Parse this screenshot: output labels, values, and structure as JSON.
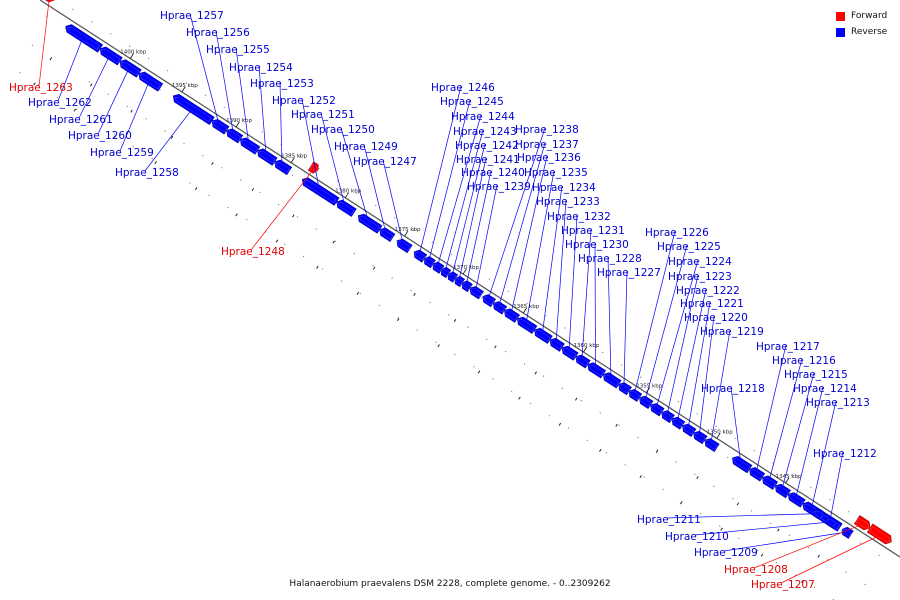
{
  "legend": {
    "forward_label": "Forward",
    "reverse_label": "Reverse",
    "forward_color": "#ff0000",
    "reverse_color": "#0000ff"
  },
  "footer": {
    "title": "Halanaerobium praevalens DSM 2228, complete genome. - 0..2309262"
  },
  "ticks": [
    "1400 kbp",
    "1395 kbp",
    "1390 kbp",
    "1385 kbp",
    "1380 kbp",
    "1375 kbp",
    "1370 kbp",
    "1365 kbp",
    "1360 kbp",
    "1355 kbp",
    "1350 kbp",
    "1345 kbp"
  ],
  "genes": [
    {
      "name": "Hprae_1263",
      "strand": "forward"
    },
    {
      "name": "Hprae_1262",
      "strand": "reverse"
    },
    {
      "name": "Hprae_1261",
      "strand": "reverse"
    },
    {
      "name": "Hprae_1260",
      "strand": "reverse"
    },
    {
      "name": "Hprae_1259",
      "strand": "reverse"
    },
    {
      "name": "Hprae_1258",
      "strand": "reverse"
    },
    {
      "name": "Hprae_1257",
      "strand": "reverse"
    },
    {
      "name": "Hprae_1256",
      "strand": "reverse"
    },
    {
      "name": "Hprae_1255",
      "strand": "reverse"
    },
    {
      "name": "Hprae_1254",
      "strand": "reverse"
    },
    {
      "name": "Hprae_1253",
      "strand": "reverse"
    },
    {
      "name": "Hprae_1252",
      "strand": "reverse"
    },
    {
      "name": "Hprae_1251",
      "strand": "reverse"
    },
    {
      "name": "Hprae_1250",
      "strand": "reverse"
    },
    {
      "name": "Hprae_1249",
      "strand": "reverse"
    },
    {
      "name": "Hprae_1248",
      "strand": "forward"
    },
    {
      "name": "Hprae_1247",
      "strand": "reverse"
    },
    {
      "name": "Hprae_1246",
      "strand": "reverse"
    },
    {
      "name": "Hprae_1245",
      "strand": "reverse"
    },
    {
      "name": "Hprae_1244",
      "strand": "reverse"
    },
    {
      "name": "Hprae_1243",
      "strand": "reverse"
    },
    {
      "name": "Hprae_1242",
      "strand": "reverse"
    },
    {
      "name": "Hprae_1241",
      "strand": "reverse"
    },
    {
      "name": "Hprae_1240",
      "strand": "reverse"
    },
    {
      "name": "Hprae_1239",
      "strand": "reverse"
    },
    {
      "name": "Hprae_1238",
      "strand": "reverse"
    },
    {
      "name": "Hprae_1237",
      "strand": "reverse"
    },
    {
      "name": "Hprae_1236",
      "strand": "reverse"
    },
    {
      "name": "Hprae_1235",
      "strand": "reverse"
    },
    {
      "name": "Hprae_1234",
      "strand": "reverse"
    },
    {
      "name": "Hprae_1233",
      "strand": "reverse"
    },
    {
      "name": "Hprae_1232",
      "strand": "reverse"
    },
    {
      "name": "Hprae_1231",
      "strand": "reverse"
    },
    {
      "name": "Hprae_1230",
      "strand": "reverse"
    },
    {
      "name": "Hprae_1228",
      "strand": "reverse"
    },
    {
      "name": "Hprae_1227",
      "strand": "reverse"
    },
    {
      "name": "Hprae_1226",
      "strand": "reverse"
    },
    {
      "name": "Hprae_1225",
      "strand": "reverse"
    },
    {
      "name": "Hprae_1224",
      "strand": "reverse"
    },
    {
      "name": "Hprae_1223",
      "strand": "reverse"
    },
    {
      "name": "Hprae_1222",
      "strand": "reverse"
    },
    {
      "name": "Hprae_1221",
      "strand": "reverse"
    },
    {
      "name": "Hprae_1220",
      "strand": "reverse"
    },
    {
      "name": "Hprae_1219",
      "strand": "reverse"
    },
    {
      "name": "Hprae_1218",
      "strand": "reverse"
    },
    {
      "name": "Hprae_1217",
      "strand": "reverse"
    },
    {
      "name": "Hprae_1216",
      "strand": "reverse"
    },
    {
      "name": "Hprae_1215",
      "strand": "reverse"
    },
    {
      "name": "Hprae_1214",
      "strand": "reverse"
    },
    {
      "name": "Hprae_1213",
      "strand": "reverse"
    },
    {
      "name": "Hprae_1212",
      "strand": "reverse"
    },
    {
      "name": "Hprae_1211",
      "strand": "reverse"
    },
    {
      "name": "Hprae_1210",
      "strand": "reverse"
    },
    {
      "name": "Hprae_1209",
      "strand": "reverse"
    },
    {
      "name": "Hprae_1208",
      "strand": "forward"
    },
    {
      "name": "Hprae_1207",
      "strand": "forward"
    }
  ]
}
